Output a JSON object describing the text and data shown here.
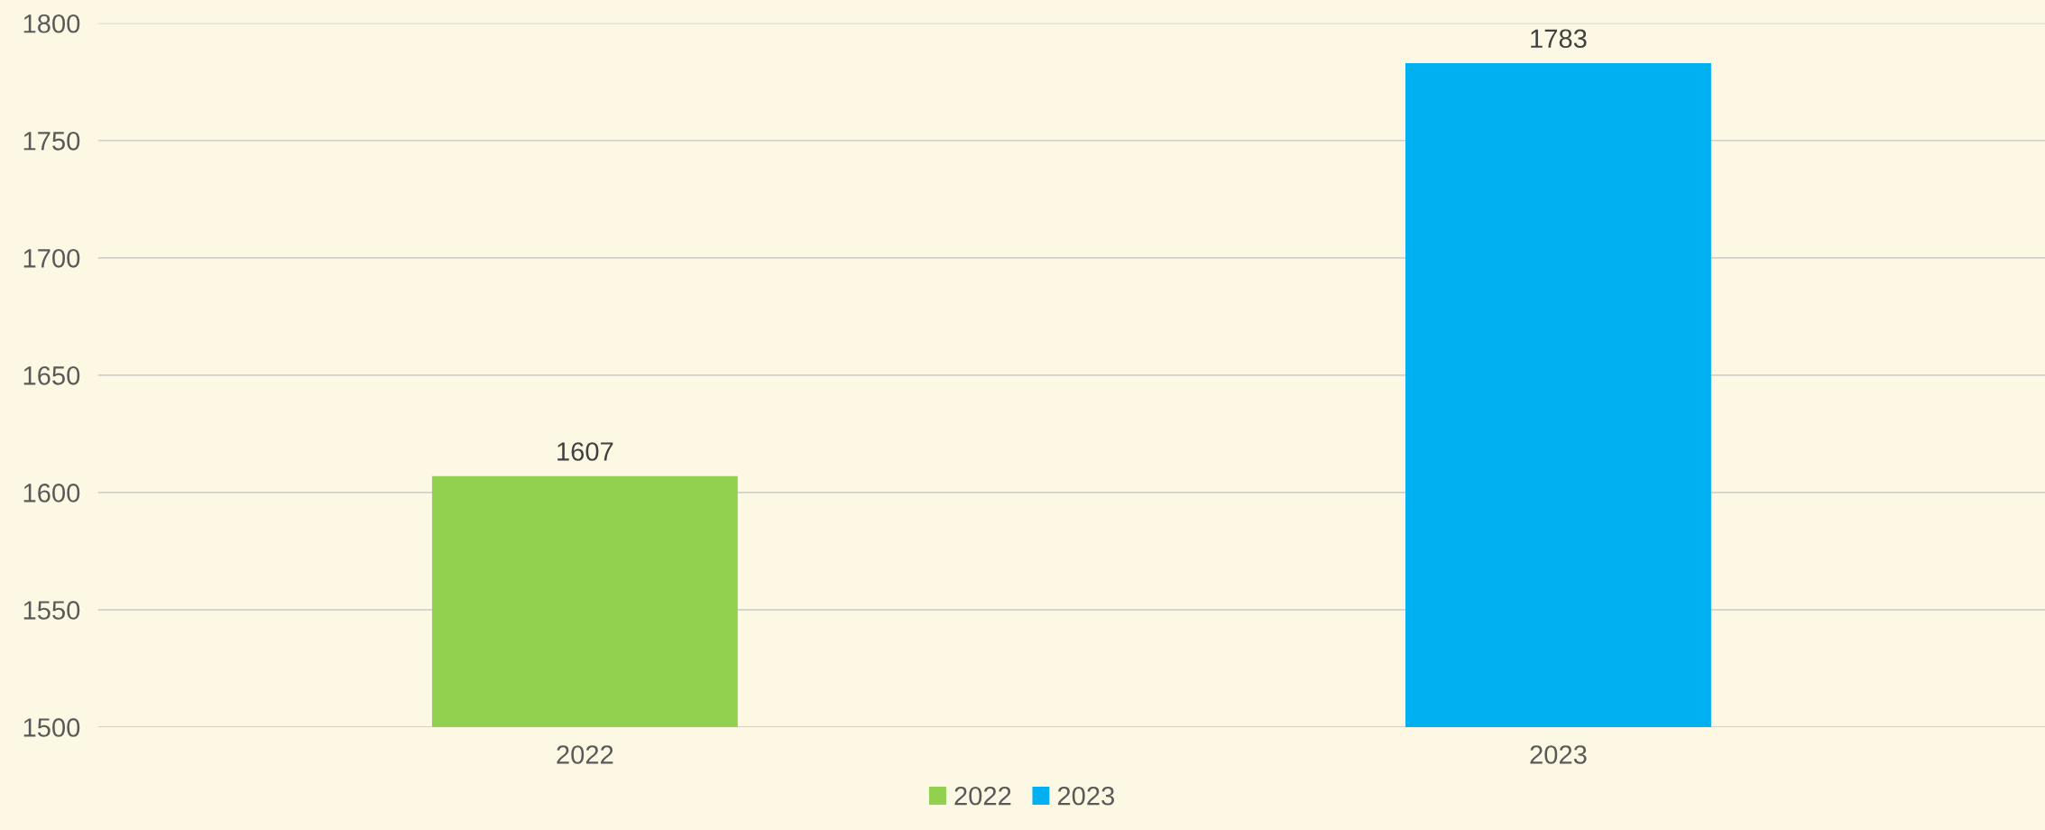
{
  "chart_data": {
    "type": "bar",
    "categories": [
      "2022",
      "2023"
    ],
    "series": [
      {
        "name": "2022",
        "color": "#92d050",
        "values": [
          1607,
          null
        ]
      },
      {
        "name": "2023",
        "color": "#00b0f0",
        "values": [
          null,
          1783
        ]
      }
    ],
    "ylim": [
      1500,
      1800
    ],
    "yticks": [
      1500,
      1550,
      1600,
      1650,
      1700,
      1750,
      1800
    ],
    "grid": "y",
    "legend": "bottom",
    "data_labels": true
  }
}
